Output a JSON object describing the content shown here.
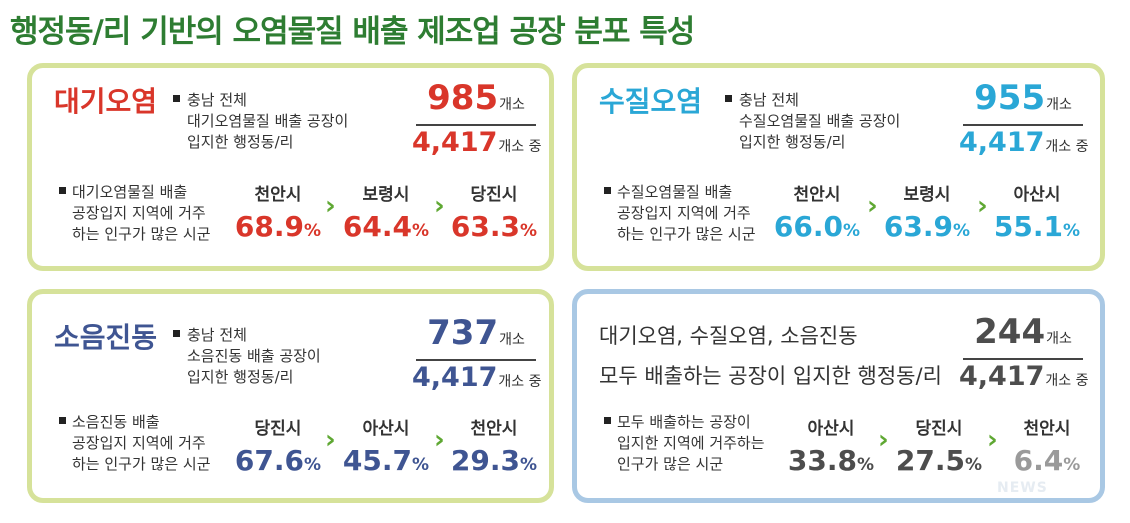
{
  "title": "행정동/리 기반의 오염물질 배출 제조업 공장 분포 특성",
  "colors": {
    "air": "#d9362a",
    "water": "#2aa7d6",
    "noise": "#3f5592",
    "all": "#4d4d4d",
    "arrow": "#5fa833"
  },
  "air": {
    "title": "대기오염",
    "desc": [
      "충남 전체",
      "대기오염물질 배출 공장이",
      "입지한 행정동/리"
    ],
    "num": "985",
    "num_unit": "개소",
    "den": "4,417",
    "den_unit": "개소 중",
    "lower": [
      "대기오염물질 배출",
      "공장입지 지역에 거주",
      "하는 인구가 많은 시군"
    ],
    "ranks": [
      {
        "city": "천안시",
        "pct": "68.9",
        "sym": "%"
      },
      {
        "city": "보령시",
        "pct": "64.4",
        "sym": "%"
      },
      {
        "city": "당진시",
        "pct": "63.3",
        "sym": "%"
      }
    ]
  },
  "water": {
    "title": "수질오염",
    "desc": [
      "충남 전체",
      "수질오염물질 배출 공장이",
      "입지한 행정동/리"
    ],
    "num": "955",
    "num_unit": "개소",
    "den": "4,417",
    "den_unit": "개소 중",
    "lower": [
      "수질오염물질 배출",
      "공장입지 지역에 거주",
      "하는 인구가 많은 시군"
    ],
    "ranks": [
      {
        "city": "천안시",
        "pct": "66.0",
        "sym": "%"
      },
      {
        "city": "보령시",
        "pct": "63.9",
        "sym": "%"
      },
      {
        "city": "아산시",
        "pct": "55.1",
        "sym": "%"
      }
    ]
  },
  "noise": {
    "title": "소음진동",
    "desc": [
      "충남 전체",
      "소음진동 배출 공장이",
      "입지한 행정동/리"
    ],
    "num": "737",
    "num_unit": "개소",
    "den": "4,417",
    "den_unit": "개소 중",
    "lower": [
      "소음진동 배출",
      "공장입지 지역에 거주",
      "하는 인구가 많은 시군"
    ],
    "ranks": [
      {
        "city": "당진시",
        "pct": "67.6",
        "sym": "%"
      },
      {
        "city": "아산시",
        "pct": "45.7",
        "sym": "%"
      },
      {
        "city": "천안시",
        "pct": "29.3",
        "sym": "%"
      }
    ]
  },
  "all": {
    "head": [
      "대기오염, 수질오염, 소음진동",
      "모두 배출하는 공장이 입지한 행정동/리"
    ],
    "num": "244",
    "num_unit": "개소",
    "den": "4,417",
    "den_unit": "개소 중",
    "lower": [
      "모두 배출하는 공장이",
      "입지한 지역에 거주하는",
      "인구가 많은 시군"
    ],
    "ranks": [
      {
        "city": "아산시",
        "pct": "33.8",
        "sym": "%"
      },
      {
        "city": "당진시",
        "pct": "27.5",
        "sym": "%"
      },
      {
        "city": "천안시",
        "pct": "6.4",
        "sym": "%"
      }
    ]
  },
  "arrow_glyph": "›",
  "watermark": "NEWS"
}
